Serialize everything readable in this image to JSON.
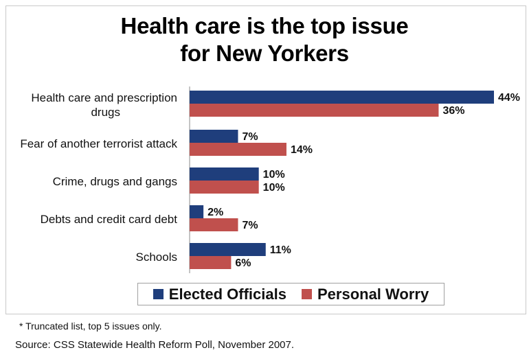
{
  "title": "Health care is the top issue for New Yorkers",
  "chart_data": {
    "type": "bar",
    "orientation": "horizontal",
    "categories": [
      "Health care and prescription drugs",
      "Fear of another terrorist attack",
      "Crime, drugs and gangs",
      "Debts and credit card debt",
      "Schools"
    ],
    "series": [
      {
        "name": "Elected Officials",
        "values": [
          44,
          7,
          10,
          2,
          11
        ],
        "color": "#1f3e7c"
      },
      {
        "name": "Personal Worry",
        "values": [
          36,
          14,
          10,
          7,
          6
        ],
        "color": "#c0504d"
      }
    ],
    "value_suffix": "%",
    "grid": false,
    "legend": "bottom"
  },
  "footnote": "* Truncated list, top 5 issues only.",
  "source": "Source: CSS Statewide Health Reform Poll, November 2007."
}
